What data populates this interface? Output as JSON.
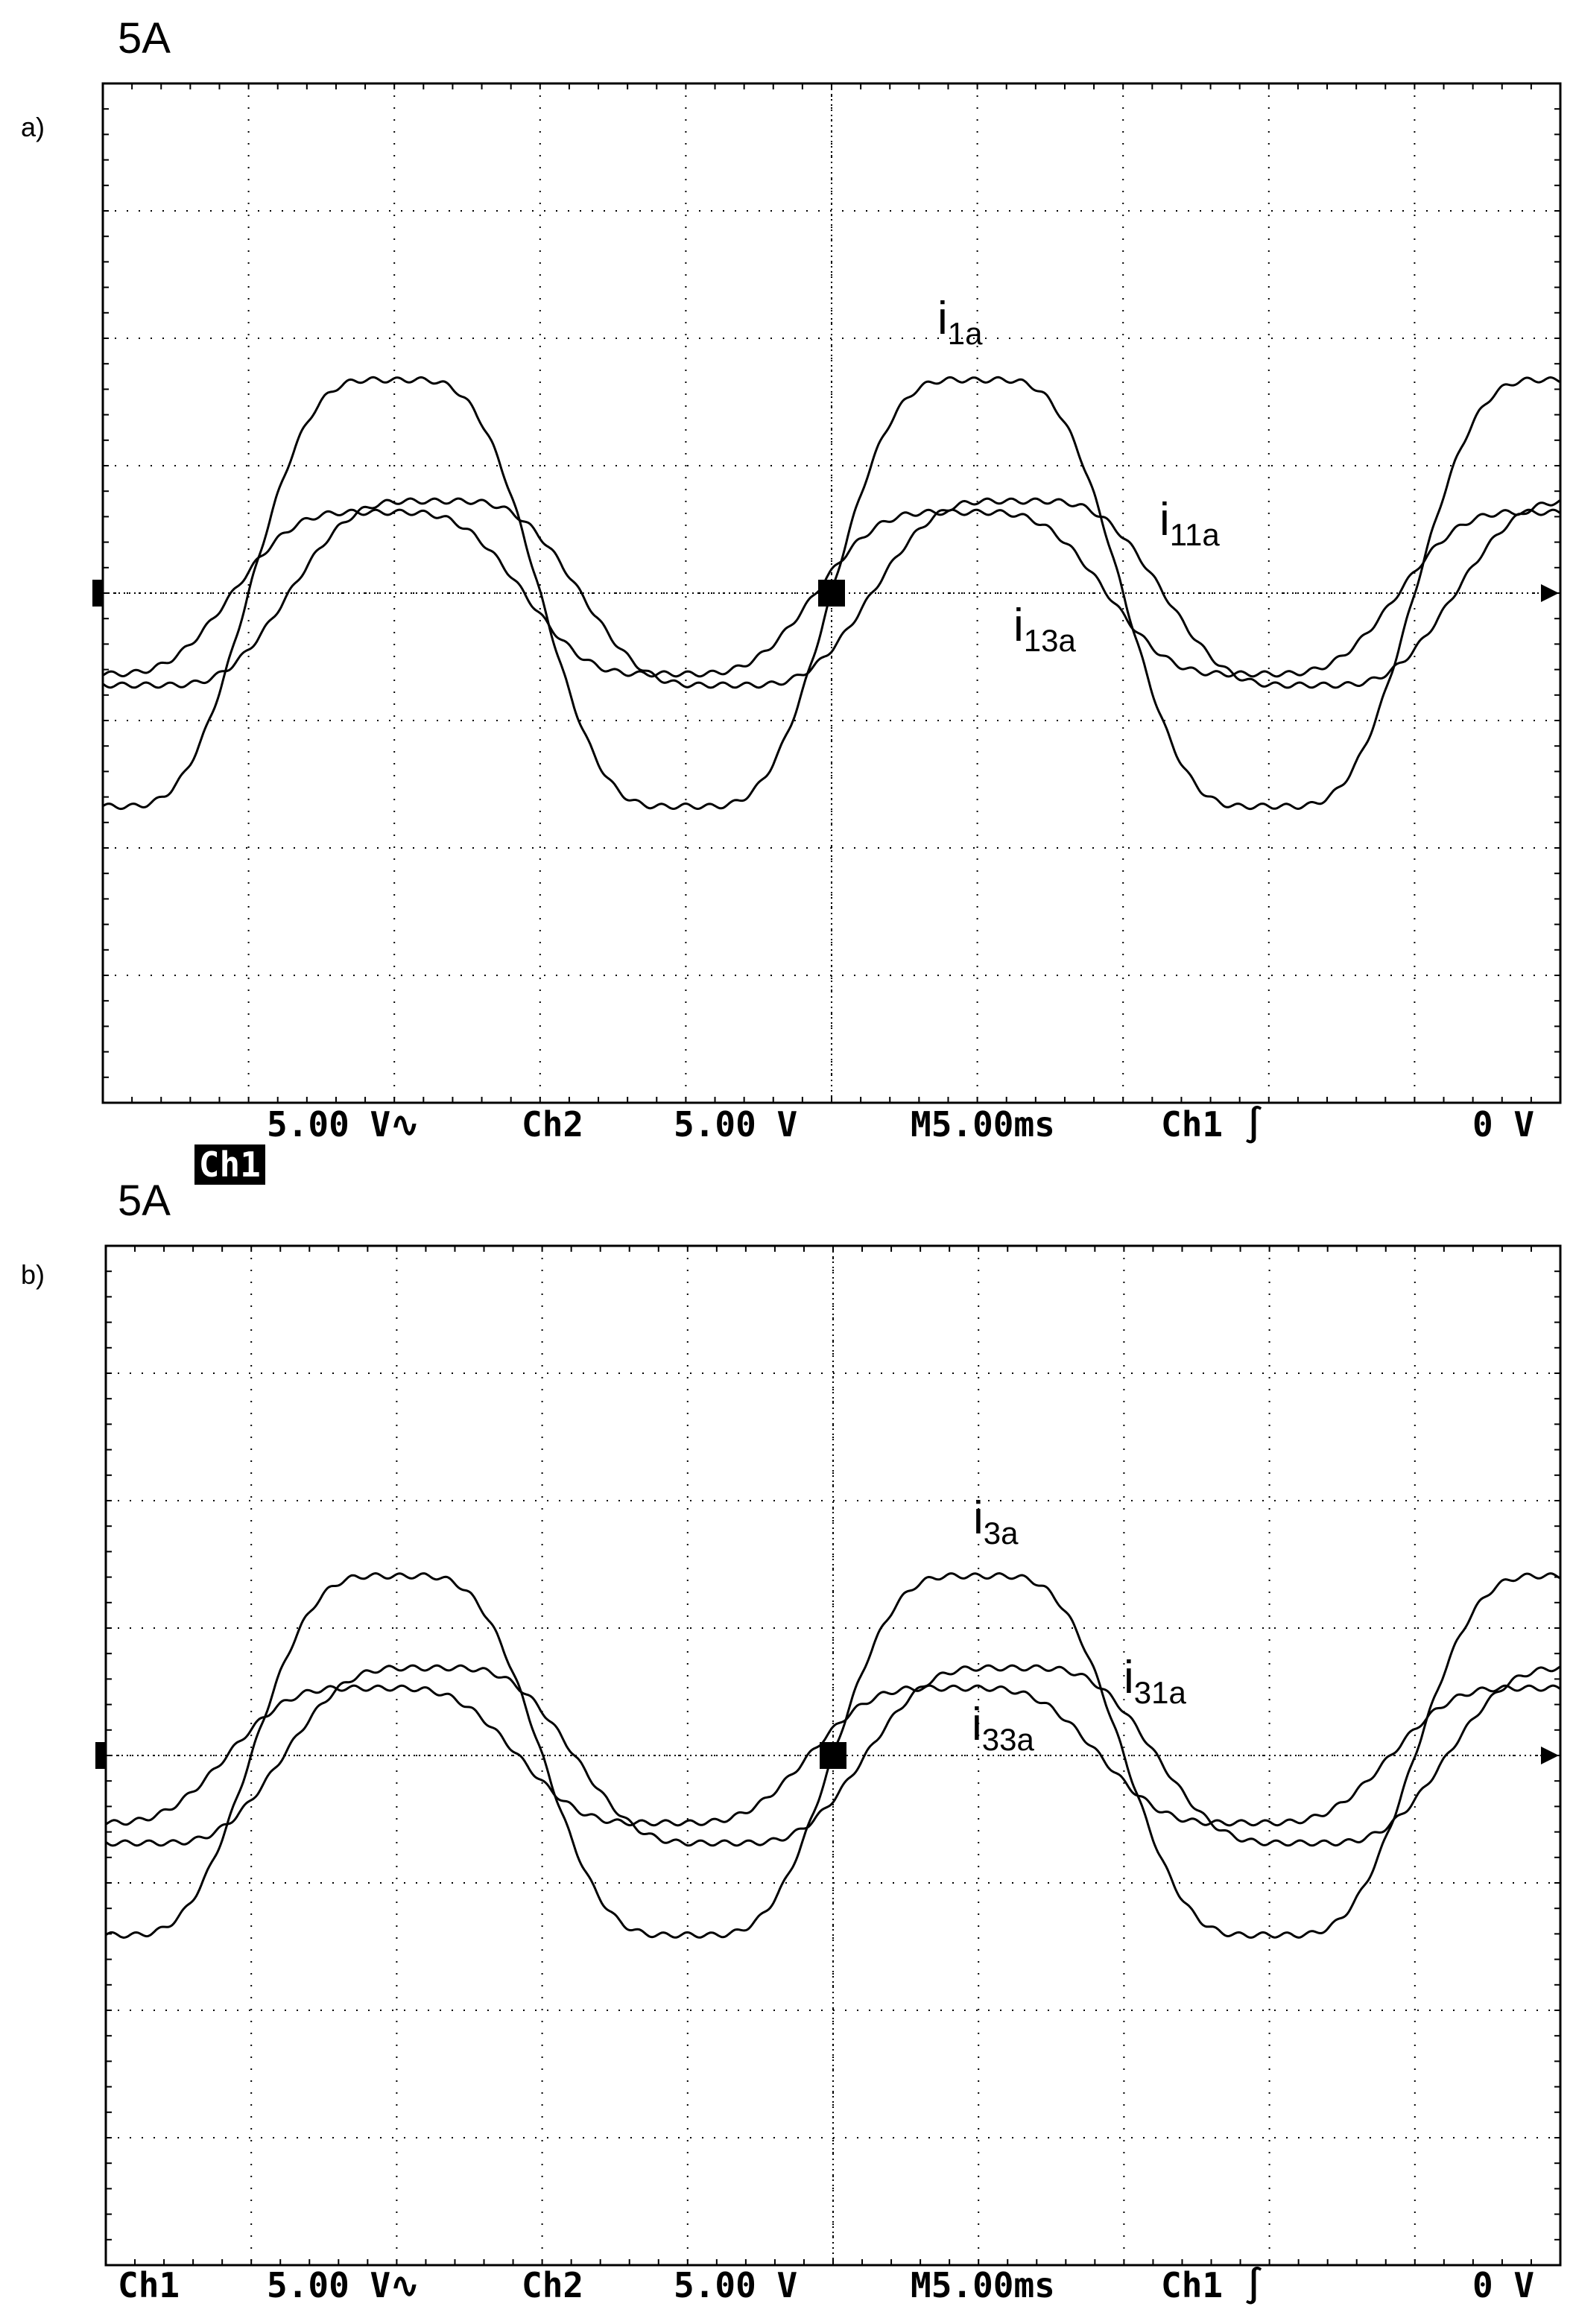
{
  "panels": [
    {
      "tag": "a)",
      "scale": "5A",
      "status": {
        "ch1": "Ch1",
        "ch1_scale": "5.00 V∿",
        "ch2": "Ch2",
        "ch2_scale": "5.00 V",
        "timebase": "M5.00ms",
        "trigger": "Ch1 ∫",
        "level": "0 V",
        "ch1_highlighted": true
      }
    },
    {
      "tag": "b)",
      "scale": "5A",
      "status": {
        "ch1": "Ch1",
        "ch1_scale": "5.00 V∿",
        "ch2": "Ch2",
        "ch2_scale": "5.00 V",
        "timebase": "M5.00ms",
        "trigger": "Ch1 ∫",
        "level": "0 V",
        "ch1_highlighted": false
      }
    }
  ],
  "chart_data": [
    {
      "type": "line",
      "title": "",
      "xlabel": "",
      "ylabel": "",
      "x_range_div": [
        0,
        10
      ],
      "y_range_div": [
        -4,
        4
      ],
      "grid": true,
      "series": [
        {
          "name": "i1a",
          "label_main": "i",
          "label_sub": "1a",
          "amplitude_div": 1.9,
          "phase_deg": 0,
          "period_div": 4
        },
        {
          "name": "i11a",
          "label_main": "i",
          "label_sub": "11a",
          "amplitude_div": 0.82,
          "phase_deg": -25,
          "period_div": 4
        },
        {
          "name": "i13a",
          "label_main": "i",
          "label_sub": "13a",
          "amplitude_div": 0.72,
          "phase_deg": 10,
          "period_div": 4
        }
      ]
    },
    {
      "type": "line",
      "title": "",
      "xlabel": "",
      "ylabel": "",
      "x_range_div": [
        0,
        10
      ],
      "y_range_div": [
        -4,
        4
      ],
      "grid": true,
      "series": [
        {
          "name": "i3a",
          "label_main": "i",
          "label_sub": "3a",
          "amplitude_div": 1.6,
          "phase_deg": 0,
          "period_div": 4
        },
        {
          "name": "i31a",
          "label_main": "i",
          "label_sub": "31a",
          "amplitude_div": 0.78,
          "phase_deg": -20,
          "period_div": 4
        },
        {
          "name": "i33a",
          "label_main": "i",
          "label_sub": "33a",
          "amplitude_div": 0.6,
          "phase_deg": 15,
          "period_div": 4
        }
      ]
    }
  ]
}
